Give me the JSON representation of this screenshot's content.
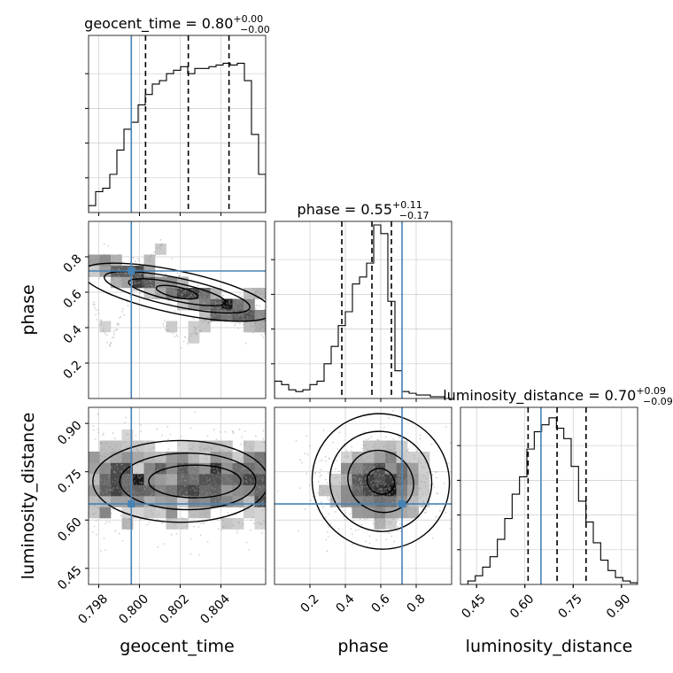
{
  "chart_data": {
    "type": "corner",
    "parameters": [
      "geocent_time",
      "phase",
      "luminosity_distance"
    ],
    "titles": [
      {
        "text": "geocent_time = 0.80",
        "sup": "+0.00",
        "sub": "−0.00"
      },
      {
        "text": "phase = 0.55",
        "sup": "+0.11",
        "sub": "−0.17"
      },
      {
        "text": "luminosity_distance = 0.70",
        "sup": "+0.09",
        "sub": "−0.09"
      }
    ],
    "ranges": [
      [
        0.7975,
        0.8062
      ],
      [
        0.0,
        1.0
      ],
      [
        0.4,
        0.95
      ]
    ],
    "x_ticks": [
      [
        0.798,
        0.8,
        0.802,
        0.804
      ],
      [
        0.2,
        0.4,
        0.6,
        0.8
      ],
      [
        0.45,
        0.6,
        0.75,
        0.9
      ]
    ],
    "x_tick_labels": [
      [
        "0.798",
        "0.800",
        "0.802",
        "0.804"
      ],
      [
        "0.2",
        "0.4",
        "0.6",
        "0.8"
      ],
      [
        "0.45",
        "0.60",
        "0.75",
        "0.90"
      ]
    ],
    "truths": [
      0.7996,
      0.72,
      0.65
    ],
    "quantiles": [
      [
        0.8003,
        0.8024,
        0.8044
      ],
      [
        0.38,
        0.55,
        0.66
      ],
      [
        0.61,
        0.7,
        0.79
      ]
    ],
    "histograms": [
      {
        "counts": [
          0.04,
          0.12,
          0.14,
          0.22,
          0.36,
          0.48,
          0.52,
          0.62,
          0.68,
          0.74,
          0.76,
          0.8,
          0.82,
          0.84,
          0.8,
          0.83,
          0.83,
          0.84,
          0.85,
          0.86,
          0.85,
          0.86,
          0.76,
          0.45,
          0.22
        ]
      },
      {
        "counts": [
          0.1,
          0.08,
          0.05,
          0.04,
          0.05,
          0.08,
          0.1,
          0.2,
          0.3,
          0.42,
          0.5,
          0.66,
          0.7,
          0.78,
          1.0,
          0.95,
          0.56,
          0.16,
          0.04,
          0.03,
          0.02,
          0.02,
          0.01,
          0.01,
          0.0
        ]
      },
      {
        "counts": [
          0.0,
          0.02,
          0.05,
          0.1,
          0.16,
          0.26,
          0.38,
          0.52,
          0.62,
          0.78,
          0.88,
          0.92,
          0.96,
          0.9,
          0.84,
          0.68,
          0.48,
          0.36,
          0.24,
          0.14,
          0.08,
          0.04,
          0.02,
          0.01
        ]
      }
    ],
    "pair_y_ticks": {
      "phase": {
        "ticks": [
          0.2,
          0.4,
          0.6,
          0.8
        ],
        "labels": [
          "0.2",
          "0.4",
          "0.6",
          "0.8"
        ]
      },
      "luminosity_distance": {
        "ticks": [
          0.45,
          0.6,
          0.75,
          0.9
        ],
        "labels": [
          "0.45",
          "0.60",
          "0.75",
          "0.90"
        ]
      }
    },
    "truth_color": "#4682b4",
    "quantile_style": "dashed",
    "grid": true
  }
}
